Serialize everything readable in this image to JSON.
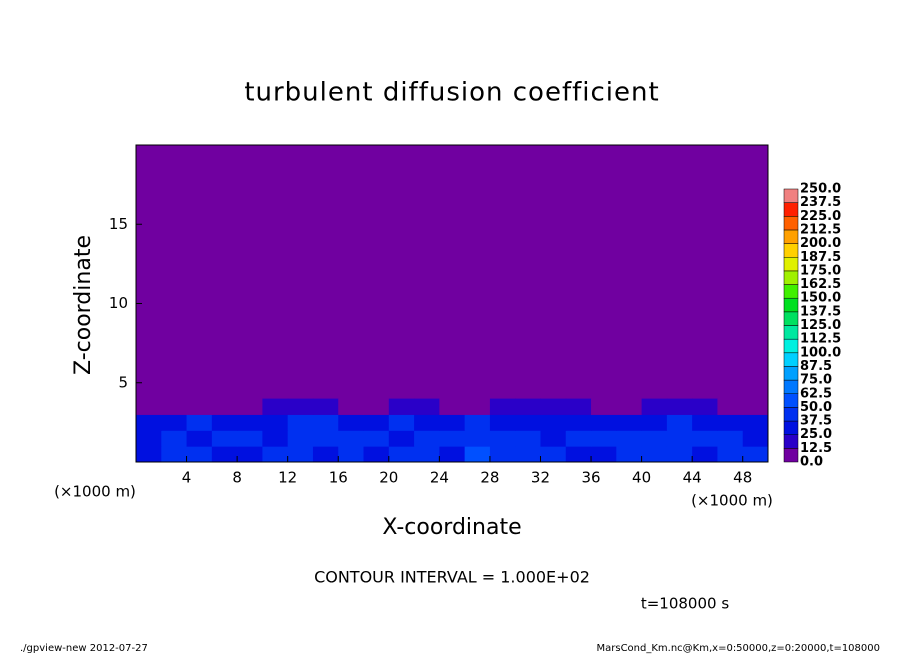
{
  "chart_data": {
    "type": "heatmap",
    "title": "turbulent diffusion coefficient",
    "xlabel": "X-coordinate",
    "ylabel": "Z-coordinate",
    "xunit": "(×1000 m)",
    "annotations": [
      "CONTOUR INTERVAL = 1.000E+02",
      "t=108000 s"
    ],
    "footer_left": "./gpview-new  2012-07-27",
    "footer_right": "MarsCond_Km.nc@Km,x=0:50000,z=0:20000,t=108000",
    "xlim": [
      0,
      50
    ],
    "ylim": [
      0,
      20
    ],
    "xticks": [
      4,
      8,
      12,
      16,
      20,
      24,
      28,
      32,
      36,
      40,
      44,
      48
    ],
    "yticks": [
      5,
      10,
      15
    ],
    "x": [
      1,
      3,
      5,
      7,
      9,
      11,
      13,
      15,
      17,
      19,
      21,
      23,
      25,
      27,
      29,
      31,
      33,
      35,
      37,
      39,
      41,
      43,
      45,
      47,
      49
    ],
    "z": [
      0.5,
      1.5,
      2.5,
      3.5
    ],
    "values": [
      [
        30,
        45,
        40,
        35,
        30,
        38,
        42,
        35,
        40,
        30,
        45,
        40,
        35,
        50,
        42,
        38,
        40,
        35,
        30,
        40,
        45,
        38,
        35,
        42,
        40
      ],
      [
        35,
        40,
        30,
        38,
        40,
        35,
        45,
        40,
        38,
        42,
        35,
        40,
        45,
        40,
        38,
        42,
        35,
        40,
        38,
        45,
        40,
        42,
        38,
        40,
        35
      ],
      [
        30,
        35,
        38,
        30,
        25,
        32,
        38,
        40,
        35,
        30,
        38,
        35,
        32,
        38,
        35,
        30,
        28,
        32,
        35,
        30,
        35,
        38,
        30,
        35,
        32
      ],
      [
        10,
        12,
        5,
        5,
        0,
        15,
        20,
        22,
        8,
        5,
        18,
        15,
        10,
        5,
        15,
        18,
        20,
        15,
        10,
        12,
        20,
        22,
        15,
        10,
        5
      ]
    ],
    "levels": [
      {
        "value": 0,
        "label": "0.0"
      },
      {
        "value": 12.5,
        "label": "12.5"
      },
      {
        "value": 25,
        "label": "25.0"
      },
      {
        "value": 37.5,
        "label": "37.5"
      },
      {
        "value": 50,
        "label": "50.0"
      },
      {
        "value": 62.5,
        "label": "62.5"
      },
      {
        "value": 75,
        "label": "75.0"
      },
      {
        "value": 87.5,
        "label": "87.5"
      },
      {
        "value": 100,
        "label": "100.0"
      },
      {
        "value": 112.5,
        "label": "112.5"
      },
      {
        "value": 125,
        "label": "125.0"
      },
      {
        "value": 137.5,
        "label": "137.5"
      },
      {
        "value": 150,
        "label": "150.0"
      },
      {
        "value": 162.5,
        "label": "162.5"
      },
      {
        "value": 175,
        "label": "175.0"
      },
      {
        "value": 187.5,
        "label": "187.5"
      },
      {
        "value": 200,
        "label": "200.0"
      },
      {
        "value": 212.5,
        "label": "212.5"
      },
      {
        "value": 225,
        "label": "225.0"
      },
      {
        "value": 237.5,
        "label": "237.5"
      },
      {
        "value": 250,
        "label": "250.0"
      }
    ],
    "colors": [
      "#7000a0",
      "#2a00c8",
      "#0010e0",
      "#0030f0",
      "#0050ff",
      "#0078ff",
      "#00a0ff",
      "#00d0ff",
      "#00f0e0",
      "#00e8a0",
      "#00e060",
      "#00e020",
      "#40f000",
      "#a0f000",
      "#e0f000",
      "#ffd000",
      "#ffa000",
      "#ff6000",
      "#ff2000",
      "#f08080"
    ]
  }
}
